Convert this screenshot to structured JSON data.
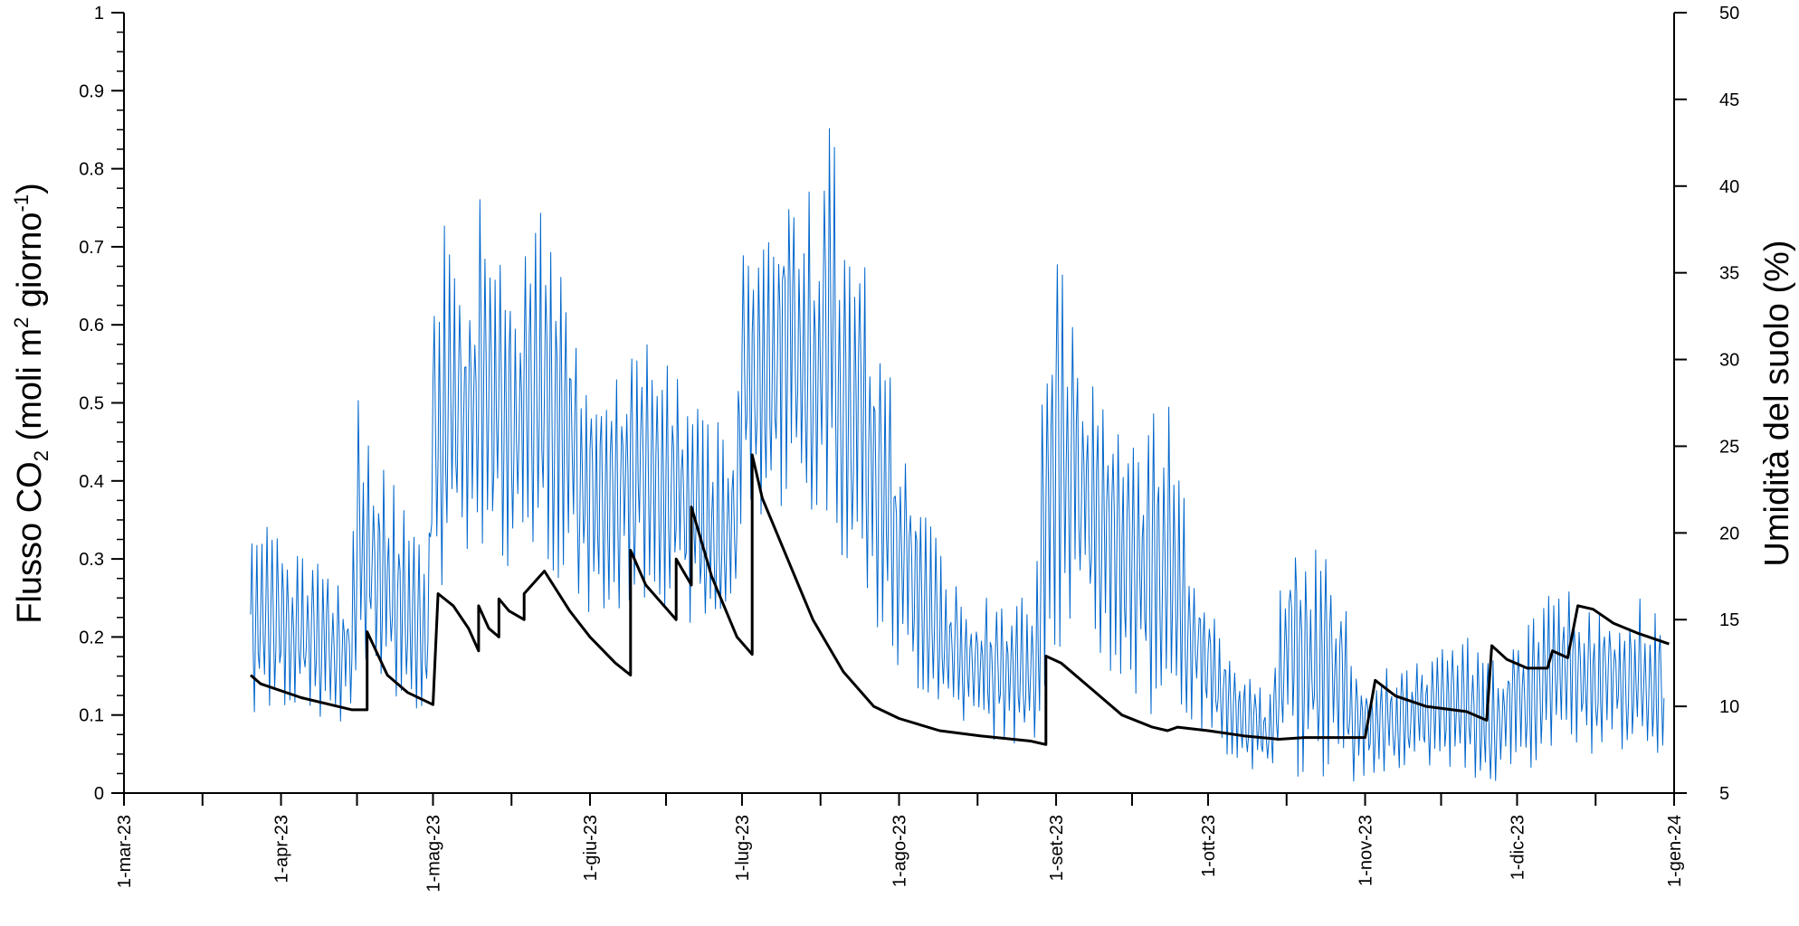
{
  "chart_data": {
    "type": "line",
    "grid": false,
    "legend": "none",
    "x": {
      "ticks": [
        "1-mar-23",
        "1-apr-23",
        "1-mag-23",
        "1-giu-23",
        "1-lug-23",
        "1-ago-23",
        "1-set-23",
        "1-ott-23",
        "1-nov-23",
        "1-dic-23",
        "1-gen-24"
      ],
      "tick_dates": [
        "2023-03-01",
        "2023-04-01",
        "2023-05-01",
        "2023-06-01",
        "2023-07-01",
        "2023-08-01",
        "2023-09-01",
        "2023-10-01",
        "2023-11-01",
        "2023-12-01",
        "2024-01-01"
      ],
      "range": [
        "2023-03-01",
        "2024-01-01"
      ]
    },
    "y_left": {
      "label_main": "Flusso CO",
      "label_sub": "2",
      "label_mid": " (moli m",
      "label_sup1": "2",
      "label_mid2": " giorno",
      "label_sup2": "-1",
      "label_end": ")",
      "range": [
        0,
        1
      ],
      "ticks": [
        "0",
        "0.1",
        "0.2",
        "0.3",
        "0.4",
        "0.5",
        "0.6",
        "0.7",
        "0.8",
        "0.9",
        "1"
      ]
    },
    "y_right": {
      "label": "Umidità del suolo (%)",
      "range": [
        5,
        50
      ],
      "ticks": [
        "5",
        "10",
        "15",
        "20",
        "25",
        "30",
        "35",
        "40",
        "45",
        "50"
      ]
    },
    "series": [
      {
        "axis": "left",
        "color": "#0066cc",
        "style": "thin-noisy",
        "points": [
          [
            "2023-03-26",
            0.08,
            0.38
          ],
          [
            "2023-03-31",
            0.1,
            0.33
          ],
          [
            "2023-04-05",
            0.1,
            0.33
          ],
          [
            "2023-04-10",
            0.09,
            0.3
          ],
          [
            "2023-04-15",
            0.08,
            0.26
          ],
          [
            "2023-04-16",
            0.13,
            0.57
          ],
          [
            "2023-04-20",
            0.13,
            0.45
          ],
          [
            "2023-04-25",
            0.12,
            0.37
          ],
          [
            "2023-04-30",
            0.1,
            0.3
          ],
          [
            "2023-05-01",
            0.3,
            0.69
          ],
          [
            "2023-05-03",
            0.25,
            0.79
          ],
          [
            "2023-05-07",
            0.27,
            0.68
          ],
          [
            "2023-05-10",
            0.22,
            0.78
          ],
          [
            "2023-05-14",
            0.28,
            0.7
          ],
          [
            "2023-05-18",
            0.3,
            0.68
          ],
          [
            "2023-05-21",
            0.3,
            0.76
          ],
          [
            "2023-05-25",
            0.28,
            0.72
          ],
          [
            "2023-05-28",
            0.25,
            0.68
          ],
          [
            "2023-05-31",
            0.22,
            0.55
          ],
          [
            "2023-06-04",
            0.2,
            0.56
          ],
          [
            "2023-06-09",
            0.24,
            0.6
          ],
          [
            "2023-06-14",
            0.25,
            0.59
          ],
          [
            "2023-06-19",
            0.22,
            0.52
          ],
          [
            "2023-06-24",
            0.2,
            0.5
          ],
          [
            "2023-06-30",
            0.22,
            0.47
          ],
          [
            "2023-07-01",
            0.35,
            0.75
          ],
          [
            "2023-07-05",
            0.35,
            0.73
          ],
          [
            "2023-07-10",
            0.36,
            0.81
          ],
          [
            "2023-07-15",
            0.33,
            0.78
          ],
          [
            "2023-07-18",
            0.35,
            0.86
          ],
          [
            "2023-07-22",
            0.28,
            0.76
          ],
          [
            "2023-07-27",
            0.2,
            0.63
          ],
          [
            "2023-08-01",
            0.14,
            0.48
          ],
          [
            "2023-08-06",
            0.12,
            0.38
          ],
          [
            "2023-08-11",
            0.1,
            0.28
          ],
          [
            "2023-08-17",
            0.07,
            0.25
          ],
          [
            "2023-08-23",
            0.06,
            0.25
          ],
          [
            "2023-08-28",
            0.05,
            0.25
          ],
          [
            "2023-08-30",
            0.15,
            0.71
          ],
          [
            "2023-09-04",
            0.2,
            0.67
          ],
          [
            "2023-09-09",
            0.17,
            0.55
          ],
          [
            "2023-09-14",
            0.12,
            0.47
          ],
          [
            "2023-09-19",
            0.1,
            0.48
          ],
          [
            "2023-09-23",
            0.1,
            0.51
          ],
          [
            "2023-09-28",
            0.08,
            0.33
          ],
          [
            "2023-10-03",
            0.06,
            0.22
          ],
          [
            "2023-10-08",
            0.03,
            0.17
          ],
          [
            "2023-10-13",
            0.02,
            0.12
          ],
          [
            "2023-10-17",
            0.02,
            0.37
          ],
          [
            "2023-10-22",
            0.02,
            0.34
          ],
          [
            "2023-10-27",
            0.02,
            0.26
          ],
          [
            "2023-11-01",
            0.01,
            0.16
          ],
          [
            "2023-11-06",
            0.03,
            0.16
          ],
          [
            "2023-11-11",
            0.03,
            0.17
          ],
          [
            "2023-11-16",
            0.02,
            0.19
          ],
          [
            "2023-11-21",
            0.02,
            0.2
          ],
          [
            "2023-11-26",
            0.01,
            0.18
          ],
          [
            "2023-12-01",
            0.03,
            0.2
          ],
          [
            "2023-12-06",
            0.03,
            0.25
          ],
          [
            "2023-12-11",
            0.05,
            0.26
          ],
          [
            "2023-12-16",
            0.05,
            0.24
          ],
          [
            "2023-12-21",
            0.05,
            0.25
          ],
          [
            "2023-12-26",
            0.05,
            0.26
          ],
          [
            "2023-12-30",
            0.05,
            0.23
          ]
        ]
      },
      {
        "axis": "right",
        "color": "#000000",
        "style": "thick",
        "points": [
          [
            "2023-03-26",
            11.8
          ],
          [
            "2023-03-28",
            11.3
          ],
          [
            "2023-04-05",
            10.5
          ],
          [
            "2023-04-15",
            9.8
          ],
          [
            "2023-04-18",
            9.8
          ],
          [
            "2023-04-18",
            14.3
          ],
          [
            "2023-04-22",
            11.8
          ],
          [
            "2023-04-26",
            10.8
          ],
          [
            "2023-05-01",
            10.1
          ],
          [
            "2023-05-02",
            16.5
          ],
          [
            "2023-05-05",
            15.8
          ],
          [
            "2023-05-08",
            14.5
          ],
          [
            "2023-05-10",
            13.2
          ],
          [
            "2023-05-10",
            15.8
          ],
          [
            "2023-05-12",
            14.5
          ],
          [
            "2023-05-14",
            14.0
          ],
          [
            "2023-05-14",
            16.2
          ],
          [
            "2023-05-16",
            15.5
          ],
          [
            "2023-05-19",
            15.0
          ],
          [
            "2023-05-19",
            16.5
          ],
          [
            "2023-05-23",
            17.8
          ],
          [
            "2023-05-28",
            15.5
          ],
          [
            "2023-06-01",
            14.0
          ],
          [
            "2023-06-06",
            12.5
          ],
          [
            "2023-06-09",
            11.8
          ],
          [
            "2023-06-09",
            19.0
          ],
          [
            "2023-06-12",
            17.0
          ],
          [
            "2023-06-18",
            15.0
          ],
          [
            "2023-06-18",
            18.5
          ],
          [
            "2023-06-21",
            17.0
          ],
          [
            "2023-06-21",
            21.5
          ],
          [
            "2023-06-25",
            17.5
          ],
          [
            "2023-06-30",
            14.0
          ],
          [
            "2023-07-03",
            13.0
          ],
          [
            "2023-07-03",
            24.5
          ],
          [
            "2023-07-05",
            22.0
          ],
          [
            "2023-07-10",
            18.5
          ],
          [
            "2023-07-15",
            15.0
          ],
          [
            "2023-07-21",
            12.0
          ],
          [
            "2023-07-27",
            10.0
          ],
          [
            "2023-08-01",
            9.3
          ],
          [
            "2023-08-09",
            8.6
          ],
          [
            "2023-08-17",
            8.3
          ],
          [
            "2023-08-27",
            8.0
          ],
          [
            "2023-08-30",
            7.8
          ],
          [
            "2023-08-30",
            12.9
          ],
          [
            "2023-09-02",
            12.5
          ],
          [
            "2023-09-08",
            11.0
          ],
          [
            "2023-09-14",
            9.5
          ],
          [
            "2023-09-20",
            8.8
          ],
          [
            "2023-09-23",
            8.6
          ],
          [
            "2023-09-25",
            8.8
          ],
          [
            "2023-10-01",
            8.6
          ],
          [
            "2023-10-08",
            8.3
          ],
          [
            "2023-10-15",
            8.1
          ],
          [
            "2023-10-20",
            8.2
          ],
          [
            "2023-10-26",
            8.2
          ],
          [
            "2023-11-01",
            8.2
          ],
          [
            "2023-11-03",
            11.5
          ],
          [
            "2023-11-07",
            10.6
          ],
          [
            "2023-11-13",
            10.0
          ],
          [
            "2023-11-21",
            9.7
          ],
          [
            "2023-11-25",
            9.2
          ],
          [
            "2023-11-26",
            13.5
          ],
          [
            "2023-11-29",
            12.7
          ],
          [
            "2023-12-03",
            12.2
          ],
          [
            "2023-12-07",
            12.2
          ],
          [
            "2023-12-08",
            13.2
          ],
          [
            "2023-12-11",
            12.8
          ],
          [
            "2023-12-13",
            15.8
          ],
          [
            "2023-12-16",
            15.6
          ],
          [
            "2023-12-20",
            14.8
          ],
          [
            "2023-12-25",
            14.2
          ],
          [
            "2023-12-31",
            13.6
          ]
        ]
      }
    ]
  }
}
